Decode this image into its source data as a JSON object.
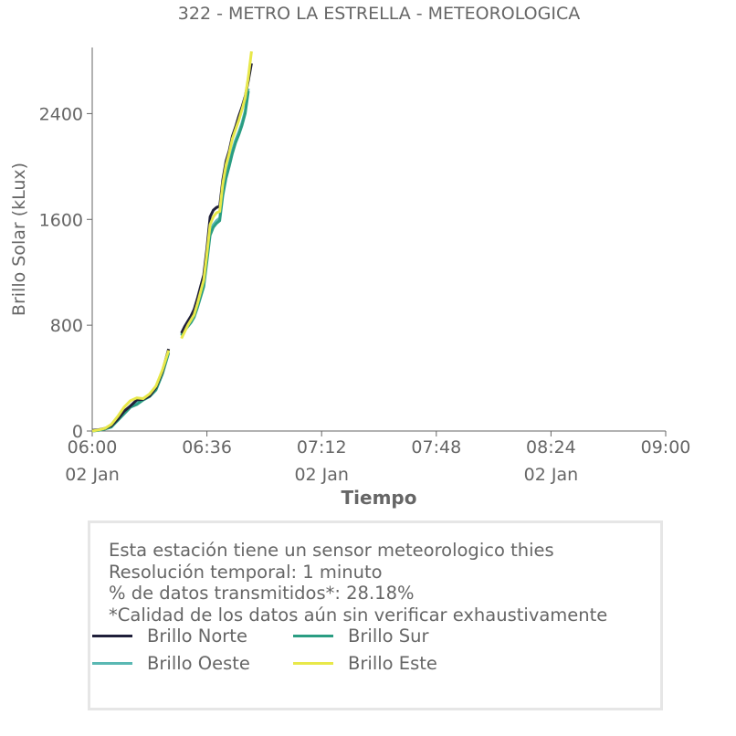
{
  "chart_data": {
    "type": "line",
    "title": "322 - METRO LA ESTRELLA - METEOROLOGICA",
    "xlabel": "Tiempo",
    "ylabel": "Brillo Solar (kLux)",
    "xlim": [
      "06:00",
      "09:00"
    ],
    "ylim": [
      0,
      2900
    ],
    "x_ticks": [
      {
        "time": "06:00",
        "date": "02 Jan"
      },
      {
        "time": "06:36",
        "date": ""
      },
      {
        "time": "07:12",
        "date": "02 Jan"
      },
      {
        "time": "07:48",
        "date": ""
      },
      {
        "time": "08:24",
        "date": "02 Jan"
      },
      {
        "time": "09:00",
        "date": ""
      }
    ],
    "y_ticks": [
      0,
      800,
      1600,
      2400
    ],
    "x": [
      "06:00",
      "06:02",
      "06:04",
      "06:06",
      "06:08",
      "06:10",
      "06:12",
      "06:14",
      "06:16",
      "06:18",
      "06:20",
      "06:22",
      "06:24",
      "06:26",
      "06:28",
      "06:30",
      "06:32",
      "06:34",
      "06:36",
      "06:37",
      "06:38",
      "06:39",
      "06:40",
      "06:41",
      "06:42",
      "06:43",
      "06:44",
      "06:45",
      "06:46",
      "06:47",
      "06:48",
      "06:49",
      "06:50",
      "06:51",
      "06:52",
      "06:53"
    ],
    "series": [
      {
        "name": "Brillo Norte",
        "color": "#1f1f3a",
        "values": [
          5,
          10,
          20,
          40,
          90,
          150,
          190,
          235,
          240,
          265,
          330,
          450,
          620,
          null,
          null,
          null,
          null,
          null,
          null,
          null,
          null,
          null,
          null,
          null,
          null,
          null,
          null,
          null,
          null,
          null,
          null,
          null,
          null,
          null,
          null,
          null
        ]
      },
      {
        "name": "Brillo Oeste",
        "color": "#5ab8b3",
        "values": [
          0,
          5,
          15,
          35,
          80,
          140,
          190,
          210,
          245,
          270,
          320,
          440,
          600,
          null,
          null,
          null,
          null,
          null,
          null,
          null,
          null,
          null,
          null,
          null,
          null,
          null,
          null,
          null,
          null,
          null,
          null,
          null,
          null,
          null,
          null,
          null
        ]
      },
      {
        "name": "Brillo Sur",
        "color": "#2a9d82",
        "values": [
          0,
          5,
          15,
          30,
          80,
          130,
          180,
          200,
          235,
          260,
          310,
          430,
          590,
          null,
          null,
          null,
          null,
          null,
          null,
          null,
          null,
          null,
          null,
          null,
          null,
          null,
          null,
          null,
          null,
          null,
          null,
          null,
          null,
          null,
          null,
          null
        ]
      },
      {
        "name": "Brillo Este",
        "color": "#e8e84a",
        "values": [
          0,
          8,
          20,
          50,
          110,
          180,
          230,
          250,
          245,
          280,
          340,
          460,
          610,
          null,
          null,
          null,
          null,
          null,
          null,
          null,
          null,
          null,
          null,
          null,
          null,
          null,
          null,
          null,
          null,
          null,
          null,
          null,
          null,
          null,
          null,
          null
        ]
      }
    ],
    "segment2": {
      "x": [
        "06:28",
        "06:29",
        "06:30",
        "06:31",
        "06:32",
        "06:33",
        "06:34",
        "06:35",
        "06:36",
        "06:37",
        "06:38",
        "06:39",
        "06:40",
        "06:41",
        "06:42",
        "06:43",
        "06:44",
        "06:45",
        "06:46",
        "06:47",
        "06:48",
        "06:49",
        "06:50",
        "06:51",
        "06:52",
        "06:53"
      ],
      "values": [
        [
          740,
          790,
          830,
          870,
          920,
          1000,
          1090,
          1180,
          1380,
          1620,
          1670,
          1690,
          1700,
          1900,
          2040,
          2120,
          2230,
          2300,
          2380,
          2450,
          2530,
          2650,
          2780,
          null,
          null,
          null
        ],
        [
          730,
          770,
          800,
          830,
          870,
          940,
          1020,
          1100,
          1300,
          1500,
          1560,
          1590,
          1610,
          1800,
          1930,
          2020,
          2120,
          2200,
          2260,
          2330,
          2420,
          2590,
          null,
          null,
          null,
          null
        ],
        [
          720,
          760,
          790,
          820,
          860,
          930,
          1010,
          1090,
          1280,
          1480,
          1540,
          1570,
          1590,
          1780,
          1910,
          2000,
          2100,
          2180,
          2240,
          2310,
          2400,
          2570,
          null,
          null,
          null,
          null
        ],
        [
          700,
          750,
          800,
          840,
          880,
          960,
          1050,
          1140,
          1340,
          1560,
          1620,
          1650,
          1660,
          1870,
          2010,
          2100,
          2210,
          2280,
          2350,
          2430,
          2520,
          2680,
          2870,
          null,
          null,
          null
        ]
      ]
    },
    "grid": false,
    "legend_placement": "bottom"
  },
  "notes": [
    "Esta estación tiene un sensor meteorologico thies",
    "Resolución temporal: 1 minuto",
    "% de datos transmitidos*: 28.18%",
    "*Calidad de los datos aún sin verificar exhaustivamente"
  ],
  "legend": [
    {
      "label": "Brillo Norte",
      "color": "#1f1f3a"
    },
    {
      "label": "Brillo Sur",
      "color": "#2a9d82"
    },
    {
      "label": "Brillo Oeste",
      "color": "#5ab8b3"
    },
    {
      "label": "Brillo Este",
      "color": "#e8e84a"
    }
  ]
}
